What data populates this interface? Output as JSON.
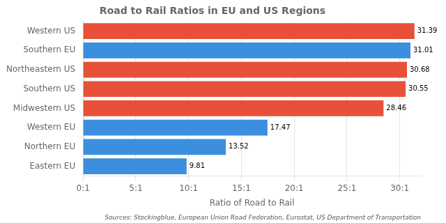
{
  "chart_data": {
    "type": "bar",
    "orientation": "horizontal",
    "title": "Road to Rail Ratios in EU and US Regions",
    "xlabel": "Ratio of Road to Rail",
    "annotation": "Sources: Stockingblue, European Union Road Federation, Eurostat, US Department of Transportation",
    "categories": [
      "Eastern EU",
      "Northern EU",
      "Western EU",
      "Midwestern US",
      "Southern US",
      "Northeastern US",
      "Southern EU",
      "Western US"
    ],
    "values": [
      9.81,
      13.52,
      17.47,
      28.46,
      30.55,
      30.68,
      31.01,
      31.39
    ],
    "colors": [
      "#3b8fde",
      "#3b8fde",
      "#3b8fde",
      "#e8503a",
      "#e8503a",
      "#e8503a",
      "#3b8fde",
      "#e8503a"
    ],
    "xlim": [
      0,
      32
    ],
    "xticks": [
      {
        "value": 0,
        "label": "0:1"
      },
      {
        "value": 5,
        "label": "5:1"
      },
      {
        "value": 10,
        "label": "10:1"
      },
      {
        "value": 15,
        "label": "15:1"
      },
      {
        "value": 20,
        "label": "20:1"
      },
      {
        "value": 25,
        "label": "25:1"
      },
      {
        "value": 30,
        "label": "30:1"
      }
    ],
    "grid": true,
    "data_labels": true
  }
}
